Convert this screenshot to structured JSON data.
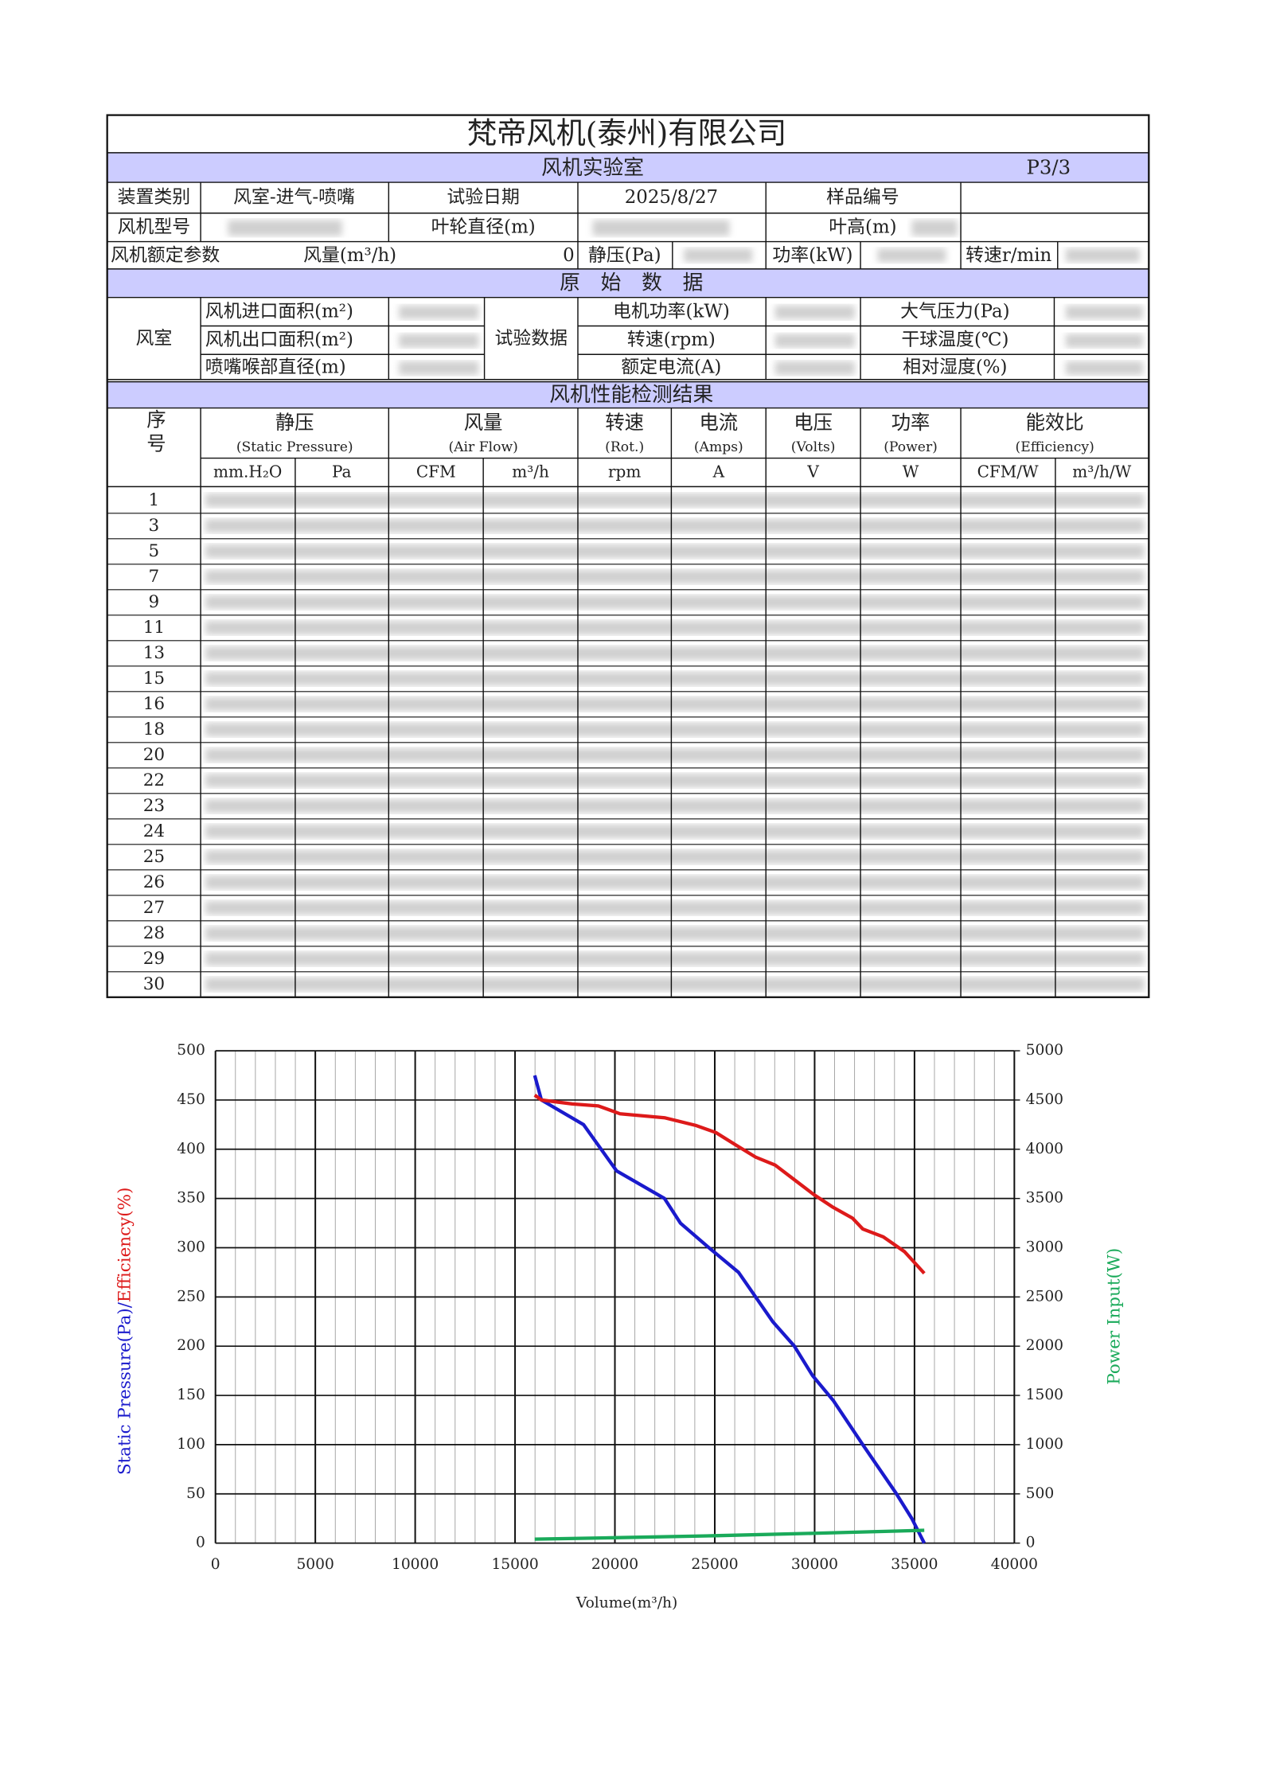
{
  "header": {
    "company": "梵帝风机(泰州)有限公司",
    "lab": "风机实验室",
    "page": "P3/3"
  },
  "info": {
    "device_type_label": "装置类别",
    "device_type": "风室-进气-喷嘴",
    "test_date_label": "试验日期",
    "test_date": "2025/8/27",
    "sample_no_label": "样品编号",
    "model_label": "风机型号",
    "impeller_diameter_label": "叶轮直径(m)",
    "blade_height_label": "叶高(m)",
    "rated_label": "风机额定参数",
    "rated_flow_label": "风量(m³/h)",
    "rated_flow": "0",
    "rated_pressure_label": "静压(Pa)",
    "rated_power_label": "功率(kW)",
    "rated_speed_label": "转速r/min"
  },
  "raw_data": {
    "title": "原　始　数　据",
    "chamber_label": "风室",
    "test_data_label": "试验数据",
    "left": [
      "风机进口面积(m²)",
      "风机出口面积(m²)",
      "喷嘴喉部直径(m)"
    ],
    "middle": [
      "电机功率(kW)",
      "转速(rpm)",
      "额定电流(A)"
    ],
    "right": [
      "大气压力(Pa)",
      "干球温度(℃)",
      "相对湿度(%)"
    ]
  },
  "results": {
    "title": "风机性能检测结果",
    "index_label": "序号",
    "groups": [
      {
        "name": "静压",
        "sub": "(Static Pressure)",
        "units": [
          "mm.H₂O",
          "Pa"
        ]
      },
      {
        "name": "风量",
        "sub": "(Air Flow)",
        "units": [
          "CFM",
          "m³/h"
        ]
      },
      {
        "name": "转速",
        "sub": "(Rot.)",
        "units": [
          "rpm"
        ]
      },
      {
        "name": "电流",
        "sub": "(Amps)",
        "units": [
          "A"
        ]
      },
      {
        "name": "电压",
        "sub": "(Volts)",
        "units": [
          "V"
        ]
      },
      {
        "name": "功率",
        "sub": "(Power)",
        "units": [
          "W"
        ]
      },
      {
        "name": "能效比",
        "sub": "(Efficiency)",
        "units": [
          "CFM/W",
          "m³/h/W"
        ]
      }
    ],
    "row_numbers": [
      "1",
      "3",
      "5",
      "7",
      "9",
      "11",
      "13",
      "15",
      "16",
      "18",
      "20",
      "22",
      "23",
      "24",
      "25",
      "26",
      "27",
      "28",
      "29",
      "30"
    ]
  },
  "chart_data": {
    "type": "line",
    "x_label": "Volume(m³/h)",
    "y_label_pressure": "Static Pressure(Pa)/",
    "y_label_efficiency": "Efficiency(%)",
    "y2_label": "Power Input(W)",
    "xlim": [
      0,
      40000
    ],
    "xticks": [
      0,
      5000,
      10000,
      15000,
      20000,
      25000,
      30000,
      35000,
      40000
    ],
    "x_minor_step": 1000,
    "ylim": [
      0,
      500
    ],
    "yticks": [
      0,
      50,
      100,
      150,
      200,
      250,
      300,
      350,
      400,
      450,
      500
    ],
    "y2lim": [
      0,
      5000
    ],
    "y2ticks": [
      0,
      500,
      1000,
      1500,
      2000,
      2500,
      3000,
      3500,
      4000,
      4500,
      5000
    ],
    "grid": true,
    "series": [
      {
        "name": "Static Pressure",
        "color": "#1a1acc",
        "x": [
          15985,
          16320,
          18430,
          20086,
          22482,
          23280,
          24708,
          26191,
          27900,
          28987,
          29900,
          30927,
          32411,
          34066,
          34866,
          35490
        ],
        "values": [
          475,
          450,
          425,
          378,
          350,
          325,
          300,
          275,
          225,
          200,
          170,
          145,
          100,
          51,
          25,
          0
        ]
      },
      {
        "name": "Efficiency",
        "color": "#dd1a1a",
        "x": [
          15985,
          16320,
          17860,
          19170,
          20257,
          22482,
          24080,
          25050,
          26077,
          27047,
          28017,
          28987,
          29957,
          30927,
          31897,
          32411,
          33438,
          34500,
          35490
        ],
        "values": [
          455,
          450,
          446,
          444,
          436,
          432,
          424,
          417,
          404,
          392,
          384,
          369,
          354,
          341,
          330,
          319,
          311,
          296,
          274
        ]
      },
      {
        "name": "Power Input",
        "color": "#1aaa5a",
        "axis": "y2",
        "x": [
          15985,
          20000,
          25000,
          30000,
          35490
        ],
        "values": [
          40,
          55,
          75,
          100,
          130
        ]
      }
    ]
  }
}
